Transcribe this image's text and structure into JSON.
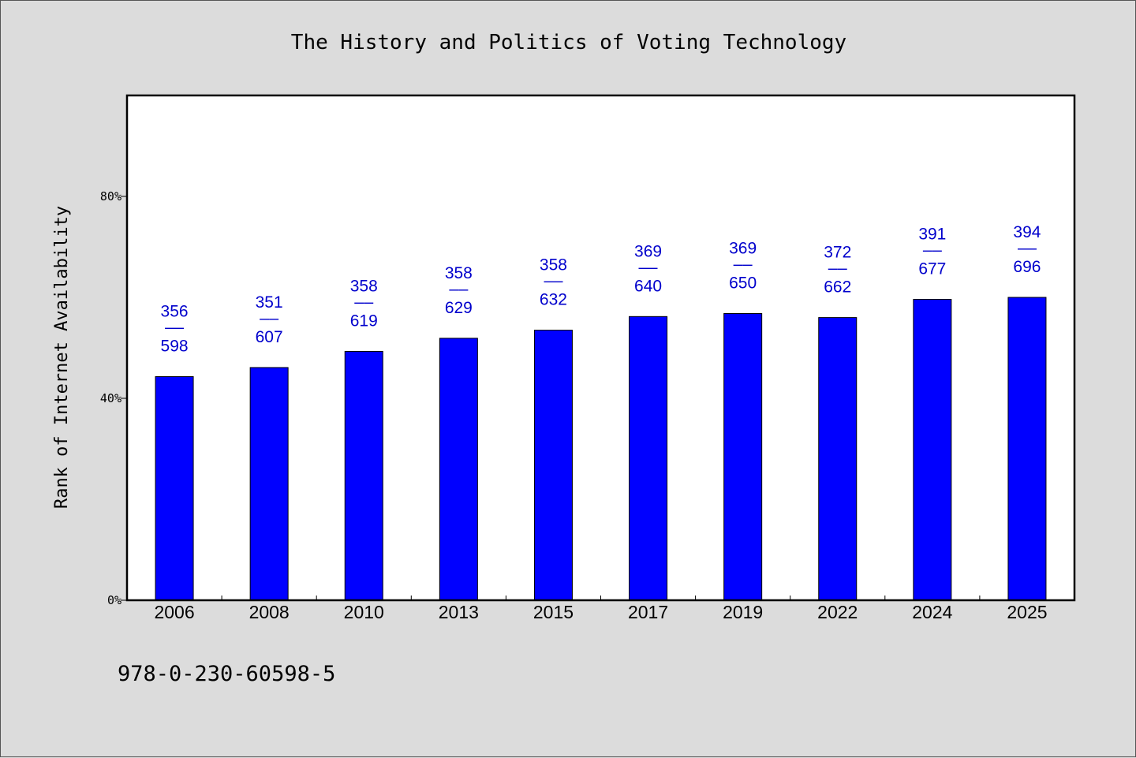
{
  "chart_data": {
    "type": "bar",
    "title": "The History and Politics of Voting Technology",
    "xlabel": "",
    "ylabel": "Rank of Internet Availability",
    "ylim": [
      0,
      100
    ],
    "yticks": [
      {
        "value": 0,
        "label": "0%"
      },
      {
        "value": 40,
        "label": "40%"
      },
      {
        "value": 80,
        "label": "80%"
      }
    ],
    "categories": [
      "2006",
      "2008",
      "2010",
      "2013",
      "2015",
      "2017",
      "2019",
      "2022",
      "2024",
      "2025"
    ],
    "values": [
      44.3,
      46.1,
      49.3,
      51.9,
      53.5,
      56.2,
      56.8,
      56.0,
      59.6,
      60.0
    ],
    "data_labels": [
      {
        "top": "356",
        "sep": "——",
        "bottom": "598"
      },
      {
        "top": "351",
        "sep": "——",
        "bottom": "607"
      },
      {
        "top": "358",
        "sep": "——",
        "bottom": "619"
      },
      {
        "top": "358",
        "sep": "——",
        "bottom": "629"
      },
      {
        "top": "358",
        "sep": "——",
        "bottom": "632"
      },
      {
        "top": "369",
        "sep": "——",
        "bottom": "640"
      },
      {
        "top": "369",
        "sep": "——",
        "bottom": "650"
      },
      {
        "top": "372",
        "sep": "——",
        "bottom": "662"
      },
      {
        "top": "391",
        "sep": "——",
        "bottom": "677"
      },
      {
        "top": "394",
        "sep": "——",
        "bottom": "696"
      }
    ],
    "bar_color": "#0000ff",
    "label_color": "#0000cc",
    "grid": false,
    "legend": "none"
  },
  "footer": {
    "isbn": "978-0-230-60598-5"
  },
  "colors": {
    "background": "#dcdcdc",
    "plot_background": "#ffffff"
  }
}
